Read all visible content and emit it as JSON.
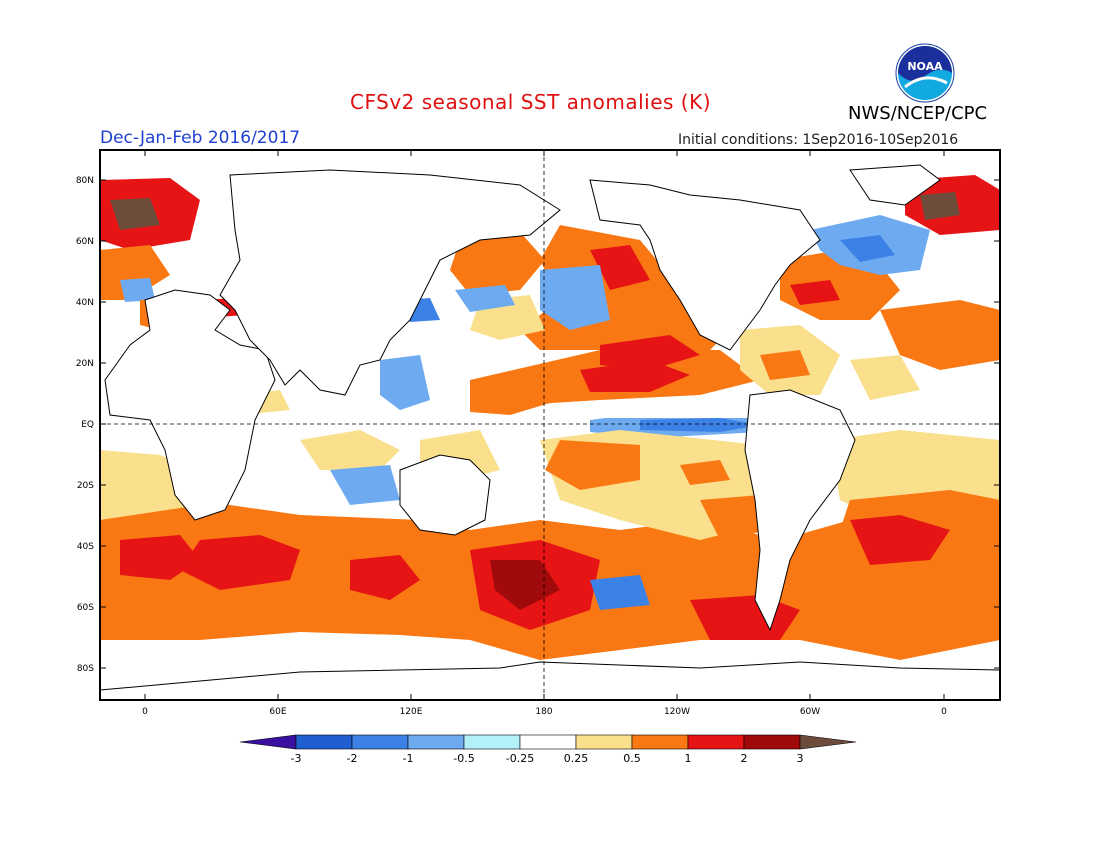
{
  "header": {
    "title": "CFSv2 seasonal SST anomalies (K)",
    "season": "Dec-Jan-Feb 2016/2017",
    "initial_conditions": "Initial conditions: 1Sep2016-10Sep2016",
    "agency": "NWS/NCEP/CPC",
    "logo_text": "NOAA"
  },
  "axes": {
    "lat_labels": [
      "80N",
      "60N",
      "40N",
      "20N",
      "EQ",
      "20S",
      "40S",
      "60S",
      "80S"
    ],
    "lon_labels": [
      "0",
      "60E",
      "120E",
      "180",
      "120W",
      "60W",
      "0"
    ]
  },
  "colorbar": {
    "labels": [
      "-3",
      "-2",
      "-1",
      "-0.5",
      "-0.25",
      "0.25",
      "0.5",
      "1",
      "2",
      "3"
    ],
    "colors": [
      "#3a10a0",
      "#1f5fd0",
      "#3c82e6",
      "#6eaaf0",
      "#b4f0f8",
      "#ffffff",
      "#fae08c",
      "#fa7814",
      "#e61414",
      "#a00a0a",
      "#6e4c3c"
    ]
  },
  "colors": {
    "title": "#e01010",
    "season": "#1f3fd1"
  }
}
